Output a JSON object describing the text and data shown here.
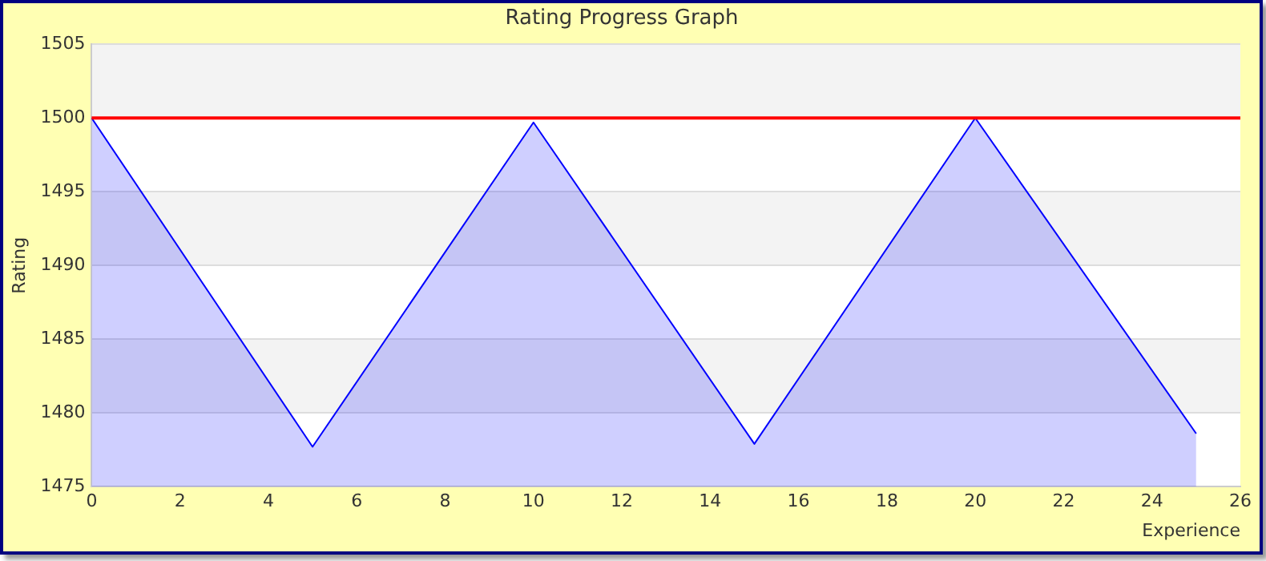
{
  "chart_data": {
    "type": "area",
    "title": "Rating Progress Graph",
    "xlabel": "Experience",
    "ylabel": "Rating",
    "x": [
      0,
      5,
      10,
      15,
      20,
      25
    ],
    "series": [
      {
        "color": "#0000ff",
        "values": [
          1500,
          1477.7,
          1499.7,
          1477.9,
          1500,
          1478.6
        ]
      }
    ],
    "xlim": [
      0,
      26
    ],
    "xticks": [
      0,
      2,
      4,
      6,
      8,
      10,
      12,
      14,
      16,
      18,
      20,
      22,
      24,
      26
    ],
    "ylim": [
      1475,
      1505
    ],
    "yticks": [
      1475,
      1480,
      1485,
      1490,
      1495,
      1500,
      1505
    ],
    "ref_lines": [
      {
        "axis": "y",
        "value": 1500,
        "color": "#ff0000"
      }
    ],
    "grid": "y",
    "legend": false
  }
}
